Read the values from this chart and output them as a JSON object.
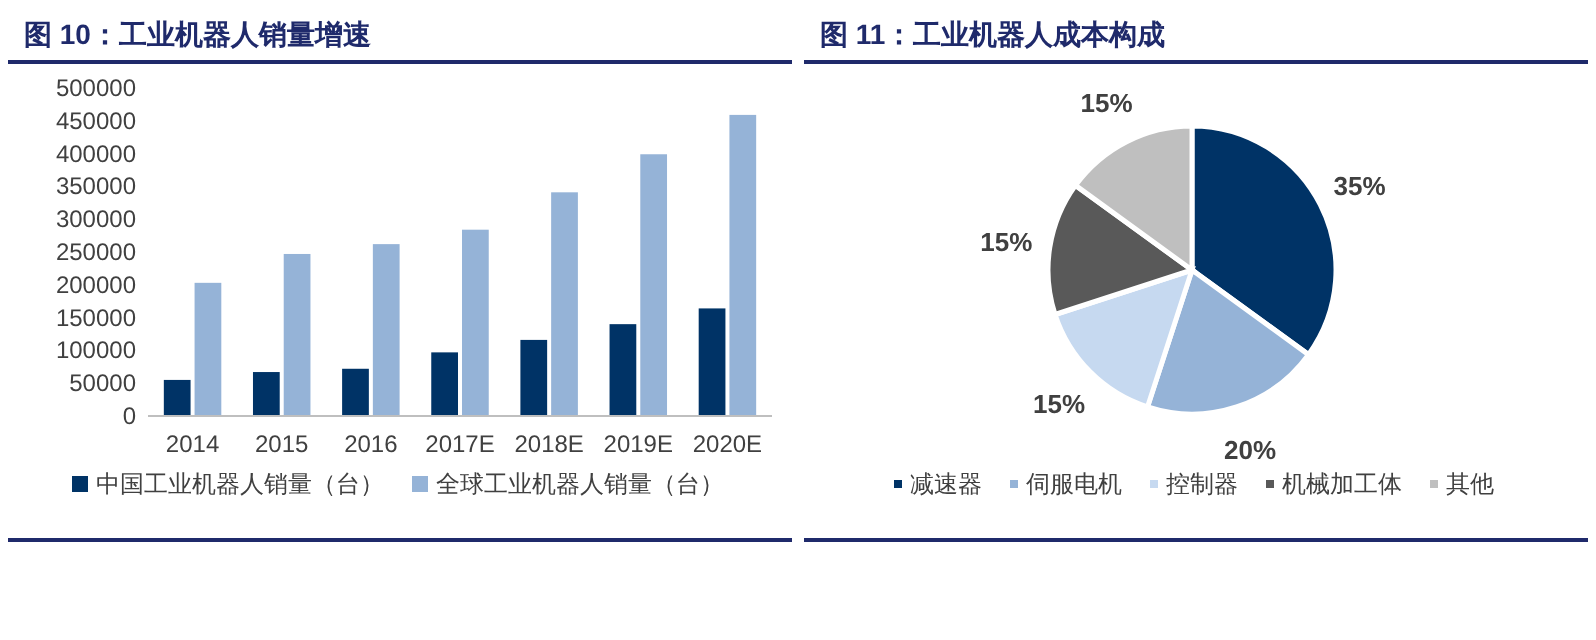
{
  "chart_data": [
    {
      "type": "bar",
      "title": "图 10：工业机器人销量增速",
      "categories": [
        "2014",
        "2015",
        "2016",
        "2017E",
        "2018E",
        "2019E",
        "2020E"
      ],
      "series": [
        {
          "name": "中国工业机器人销量（台）",
          "color": "#003366",
          "values": [
            55000,
            67000,
            72000,
            97000,
            116000,
            140000,
            164000
          ]
        },
        {
          "name": "全球工业机器人销量（台）",
          "color": "#95b3d7",
          "values": [
            203000,
            247000,
            262000,
            284000,
            341000,
            399000,
            459000
          ]
        }
      ],
      "ylim": [
        0,
        500000
      ],
      "yticks": [
        0,
        50000,
        100000,
        150000,
        200000,
        250000,
        300000,
        350000,
        400000,
        450000,
        500000
      ],
      "legend": "bottom"
    },
    {
      "type": "pie",
      "title": "图 11：工业机器人成本构成",
      "categories": [
        "减速器",
        "伺服电机",
        "控制器",
        "机械加工体",
        "其他"
      ],
      "values": [
        35,
        20,
        15,
        15,
        15
      ],
      "colors": [
        "#003366",
        "#95b3d7",
        "#c6d9f0",
        "#595959",
        "#bfbfbf"
      ],
      "value_labels": [
        "35%",
        "20%",
        "15%",
        "15%",
        "15%"
      ],
      "legend": "bottom"
    }
  ]
}
